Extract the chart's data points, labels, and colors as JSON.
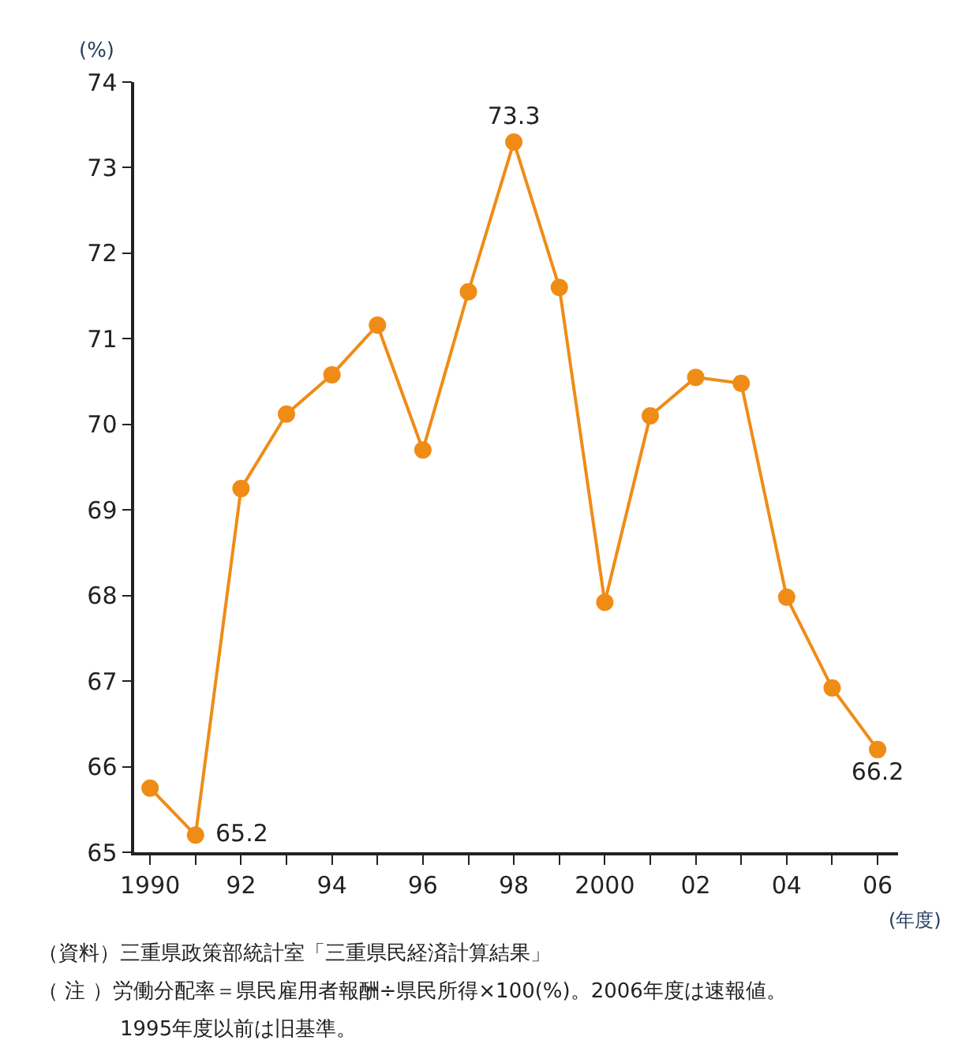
{
  "chart_data": {
    "type": "line",
    "xlabel": "(年度)",
    "ylabel": "(%)",
    "x": [
      1990,
      1991,
      1992,
      1993,
      1994,
      1995,
      1996,
      1997,
      1998,
      1999,
      2000,
      2001,
      2002,
      2003,
      2004,
      2005,
      2006
    ],
    "series": [
      {
        "color": "#ef8c16",
        "values": [
          65.75,
          65.2,
          69.25,
          70.12,
          70.58,
          71.16,
          69.7,
          71.55,
          73.3,
          71.6,
          67.92,
          70.1,
          70.55,
          70.48,
          67.98,
          66.92,
          66.2
        ],
        "value_labels": [
          null,
          "65.2",
          null,
          null,
          null,
          null,
          null,
          null,
          "73.3",
          null,
          null,
          null,
          null,
          null,
          null,
          null,
          "66.2"
        ]
      }
    ],
    "xlim": [
      1989.65,
      2006.45
    ],
    "xticks": [
      {
        "value": 1990,
        "label": "1990"
      },
      {
        "value": 1991,
        "label": null
      },
      {
        "value": 1992,
        "label": "92"
      },
      {
        "value": 1993,
        "label": null
      },
      {
        "value": 1994,
        "label": "94"
      },
      {
        "value": 1995,
        "label": null
      },
      {
        "value": 1996,
        "label": "96"
      },
      {
        "value": 1997,
        "label": null
      },
      {
        "value": 1998,
        "label": "98"
      },
      {
        "value": 1999,
        "label": null
      },
      {
        "value": 2000,
        "label": "2000"
      },
      {
        "value": 2001,
        "label": null
      },
      {
        "value": 2002,
        "label": "02"
      },
      {
        "value": 2003,
        "label": null
      },
      {
        "value": 2004,
        "label": "04"
      },
      {
        "value": 2005,
        "label": null
      },
      {
        "value": 2006,
        "label": "06"
      }
    ],
    "ylim": [
      65,
      74
    ],
    "yticks": [
      65,
      66,
      67,
      68,
      69,
      70,
      71,
      72,
      73,
      74
    ],
    "marker": "circle",
    "line_style": "solid",
    "annotations": [
      "（資料）三重県政策部統計室「三重県民経済計算結果」",
      "（ 注 ）労働分配率＝県民雇用者報酬÷県民所得×100(%)。2006年度は速報値。",
      "　　　　1995年度以前は旧基準。"
    ]
  }
}
